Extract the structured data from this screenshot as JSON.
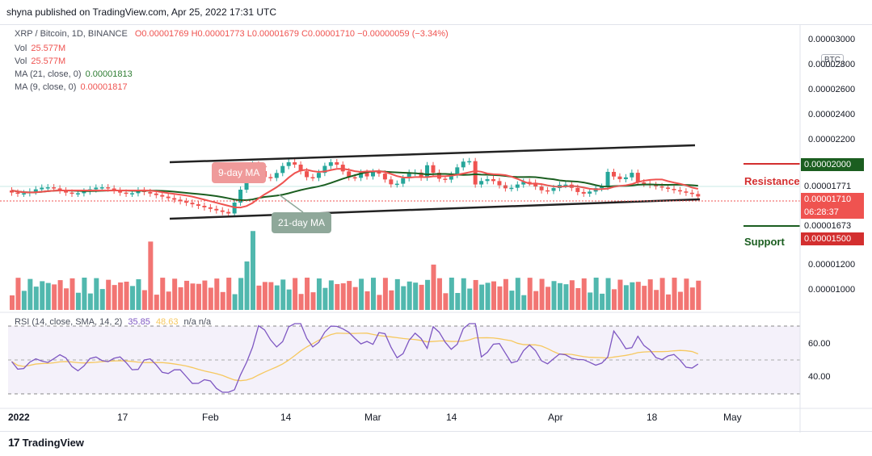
{
  "caption": "shyna published on TradingView.com, Apr 25, 2022 17:31 UTC",
  "legend": {
    "symbol": "XRP / Bitcoin, 1D, BINANCE",
    "ohlc": "O0.00001769  H0.00001773  L0.00001679  C0.00001710  −0.00000059 (−3.34%)",
    "vol1_key": "Vol",
    "vol1_val": "25.577M",
    "vol2_key": "Vol",
    "vol2_val": "25.577M",
    "ma21_key": "MA (21, close, 0)",
    "ma21_val": "0.00001813",
    "ma9_key": "MA (9, close, 0)",
    "ma9_val": "0.00001817",
    "rsi": "RSI (14, close, SMA, 14, 2)",
    "rsi_val1": "35.85",
    "rsi_val2": "48.63",
    "rsi_rest": "n/a  n/a"
  },
  "axis_currency": "BTC",
  "price_ticks": [
    "0.00003000",
    "0.00002800",
    "0.00002600",
    "0.00002400",
    "0.00002200",
    "0.00001200",
    "0.00001000"
  ],
  "rsi_ticks": [
    "60.00",
    "40.00"
  ],
  "tags": {
    "resistance_value": "0.00002000",
    "ma_value": "0.00001771",
    "last_price": "0.00001710",
    "countdown": "06:28:37",
    "support_value": "0.00001673",
    "support2_value": "0.00001500"
  },
  "annotations": {
    "resistance": "Resistance",
    "support": "Support",
    "nine_day": "9-day MA",
    "twentyone_day": "21-day MA"
  },
  "time_ticks": [
    "2022",
    "17",
    "Feb",
    "14",
    "Mar",
    "14",
    "Apr",
    "18",
    "May"
  ],
  "footer": "TradingView",
  "colors": {
    "up": "#26a69a",
    "down": "#ef5350",
    "ma9": "#ef5350",
    "ma21": "#1b5e20",
    "rsi_line": "#7e57c2",
    "rsi_ma": "#f6c85f"
  }
}
